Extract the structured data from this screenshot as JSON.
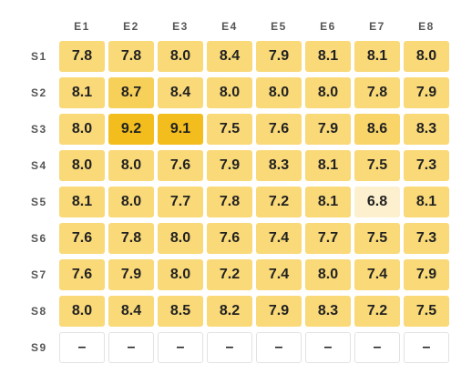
{
  "chart_data": {
    "type": "heatmap",
    "columns": [
      "E1",
      "E2",
      "E3",
      "E4",
      "E5",
      "E6",
      "E7",
      "E8"
    ],
    "rows": [
      "S1",
      "S2",
      "S3",
      "S4",
      "S5",
      "S6",
      "S7",
      "S8",
      "S9"
    ],
    "values": [
      [
        "7.8",
        "7.8",
        "8.0",
        "8.4",
        "7.9",
        "8.1",
        "8.1",
        "8.0"
      ],
      [
        "8.1",
        "8.7",
        "8.4",
        "8.0",
        "8.0",
        "8.0",
        "7.8",
        "7.9"
      ],
      [
        "8.0",
        "9.2",
        "9.1",
        "7.5",
        "7.6",
        "7.9",
        "8.6",
        "8.3"
      ],
      [
        "8.0",
        "8.0",
        "7.6",
        "7.9",
        "8.3",
        "8.1",
        "7.5",
        "7.3"
      ],
      [
        "8.1",
        "8.0",
        "7.7",
        "7.8",
        "7.2",
        "8.1",
        "6.8",
        "8.1"
      ],
      [
        "7.6",
        "7.8",
        "8.0",
        "7.6",
        "7.4",
        "7.7",
        "7.5",
        "7.3"
      ],
      [
        "7.6",
        "7.9",
        "8.0",
        "7.2",
        "7.4",
        "8.0",
        "7.4",
        "7.9"
      ],
      [
        "8.0",
        "8.4",
        "8.5",
        "8.2",
        "7.9",
        "8.3",
        "7.2",
        "7.5"
      ],
      [
        "–",
        "–",
        "–",
        "–",
        "–",
        "–",
        "–",
        "–"
      ]
    ],
    "color_scale": {
      "low": "#fcf0cf",
      "mid": "#f9d978",
      "high": "#f2bd1d"
    }
  }
}
